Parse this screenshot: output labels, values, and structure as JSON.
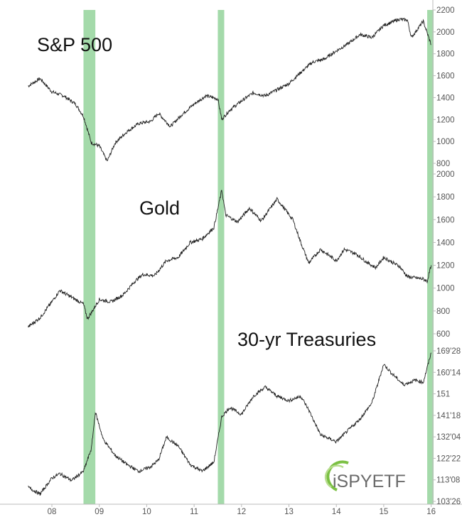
{
  "chart_data": {
    "type": "line",
    "x_axis": {
      "ticks": [
        "08",
        "09",
        "10",
        "11",
        "12",
        "13",
        "14",
        "15",
        "16"
      ]
    },
    "highlight_periods": [
      {
        "start": "2008-09",
        "end": "2008-12"
      },
      {
        "start": "2011-07",
        "end": "2011-08"
      },
      {
        "start": "2015-12",
        "end": "2016-01"
      }
    ],
    "highlight_color": "#9fd8a5",
    "line_color": "#222222",
    "panels": [
      {
        "title": "S&P 500",
        "y_tick_labels": [
          "800",
          "1000",
          "1200",
          "1400",
          "1600",
          "1800",
          "2000",
          "2200"
        ],
        "ylim": [
          700,
          2200
        ],
        "x": [
          "2007-07",
          "2007-10",
          "2008-01",
          "2008-04",
          "2008-07",
          "2008-09",
          "2008-11",
          "2009-01",
          "2009-03",
          "2009-05",
          "2009-08",
          "2009-11",
          "2010-02",
          "2010-04",
          "2010-07",
          "2010-10",
          "2011-01",
          "2011-04",
          "2011-07",
          "2011-08",
          "2011-10",
          "2012-01",
          "2012-04",
          "2012-07",
          "2012-10",
          "2013-01",
          "2013-04",
          "2013-07",
          "2013-10",
          "2014-01",
          "2014-04",
          "2014-07",
          "2014-10",
          "2015-01",
          "2015-05",
          "2015-07",
          "2015-08",
          "2015-11",
          "2016-01"
        ],
        "values": [
          1455,
          1530,
          1400,
          1360,
          1280,
          1160,
          900,
          870,
          720,
          900,
          1010,
          1090,
          1110,
          1190,
          1060,
          1180,
          1280,
          1360,
          1330,
          1130,
          1220,
          1310,
          1390,
          1360,
          1420,
          1480,
          1590,
          1690,
          1720,
          1800,
          1870,
          1960,
          1930,
          2050,
          2110,
          2100,
          1930,
          2090,
          1860
        ]
      },
      {
        "title": "Gold",
        "y_tick_labels": [
          "600",
          "800",
          "1000",
          "1200",
          "1400",
          "1600",
          "1800",
          "2000"
        ],
        "ylim": [
          600,
          2000
        ],
        "x": [
          "2007-07",
          "2007-10",
          "2008-01",
          "2008-03",
          "2008-06",
          "2008-09",
          "2008-10",
          "2009-01",
          "2009-04",
          "2009-07",
          "2009-10",
          "2009-12",
          "2010-03",
          "2010-06",
          "2010-09",
          "2010-12",
          "2011-03",
          "2011-06",
          "2011-08",
          "2011-09",
          "2011-12",
          "2012-03",
          "2012-06",
          "2012-10",
          "2012-12",
          "2013-02",
          "2013-04",
          "2013-06",
          "2013-09",
          "2014-01",
          "2014-03",
          "2014-06",
          "2014-09",
          "2014-11",
          "2015-01",
          "2015-05",
          "2015-07",
          "2015-11",
          "2015-12",
          "2016-01"
        ],
        "values": [
          660,
          740,
          880,
          980,
          920,
          860,
          730,
          900,
          880,
          940,
          1060,
          1120,
          1110,
          1240,
          1270,
          1400,
          1430,
          1530,
          1860,
          1640,
          1580,
          1700,
          1590,
          1780,
          1690,
          1600,
          1400,
          1220,
          1340,
          1240,
          1340,
          1300,
          1220,
          1180,
          1270,
          1190,
          1100,
          1080,
          1060,
          1200
        ]
      },
      {
        "title": "30-yr Treasuries",
        "y_tick_labels": [
          "103'26",
          "113'08",
          "122'22",
          "132'04",
          "141'18",
          "151",
          "160'14",
          "169'28"
        ],
        "ylim": [
          103.8125,
          169.875
        ],
        "x": [
          "2007-07",
          "2007-10",
          "2008-01",
          "2008-03",
          "2008-06",
          "2008-09",
          "2008-11",
          "2008-12",
          "2009-02",
          "2009-05",
          "2009-08",
          "2009-11",
          "2010-02",
          "2010-04",
          "2010-06",
          "2010-09",
          "2010-12",
          "2011-03",
          "2011-06",
          "2011-08",
          "2011-10",
          "2012-01",
          "2012-04",
          "2012-07",
          "2012-10",
          "2013-01",
          "2013-04",
          "2013-06",
          "2013-09",
          "2014-01",
          "2014-04",
          "2014-07",
          "2014-10",
          "2015-01",
          "2015-03",
          "2015-06",
          "2015-09",
          "2015-11",
          "2016-01"
        ],
        "values": [
          110,
          107,
          114,
          116,
          113,
          117,
          127,
          143,
          131,
          124,
          120,
          117,
          119,
          122,
          132,
          128,
          120,
          117,
          121,
          141,
          145,
          142,
          150,
          154,
          150,
          148,
          150,
          144,
          133,
          130,
          135,
          140,
          147,
          164,
          160,
          155,
          157,
          156,
          169
        ]
      }
    ]
  },
  "logo": {
    "text": "iSPYETF"
  }
}
